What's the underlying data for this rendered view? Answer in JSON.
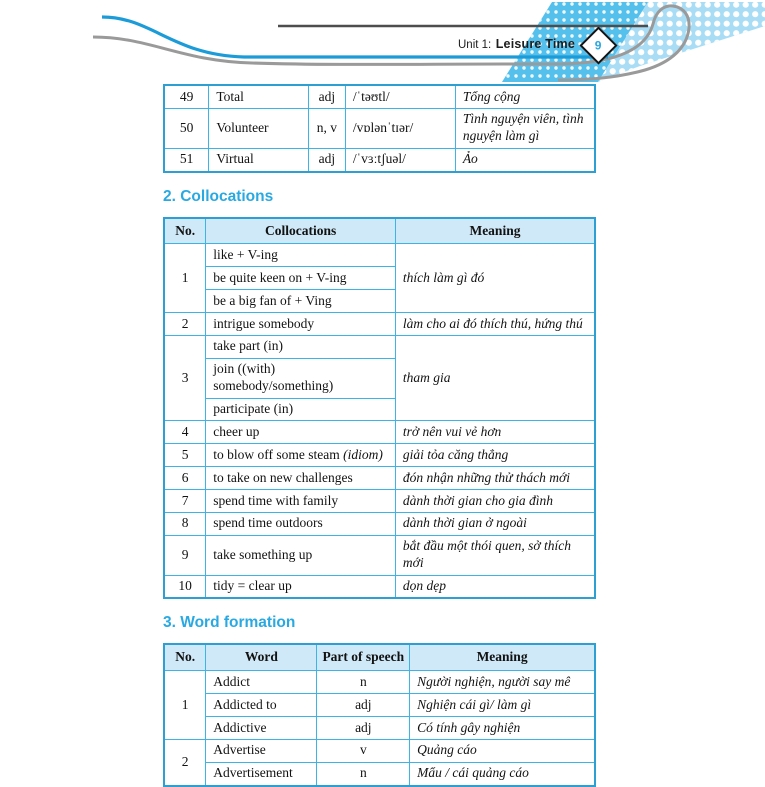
{
  "page_header": {
    "unit_label": "Unit 1:",
    "unit_title": "Leisure Time",
    "page_number": "9"
  },
  "colors": {
    "accent": "#29a9e1",
    "table_border": "#3eb3e6",
    "table_outer_border": "#2d9fd3",
    "table_header_bg": "#cfe9f8",
    "halftone_blue_dark": "#55c0ec",
    "halftone_blue_light": "#a8ddf5",
    "wave_gray": "#9a9a9a",
    "wave_blue": "#1b9cd9"
  },
  "vocab_table": {
    "rows": [
      {
        "no": "49",
        "word": "Total",
        "pos": "adj",
        "pron": "/ˈtəʊtl/",
        "meaning": "Tổng cộng"
      },
      {
        "no": "50",
        "word": "Volunteer",
        "pos": "n, v",
        "pron": "/vɒlənˈtɪər/",
        "meaning": "Tình nguyện viên, tình nguyện làm gì"
      },
      {
        "no": "51",
        "word": "Virtual",
        "pos": "adj",
        "pron": "/ˈvɜːtʃuəl/",
        "meaning": "Ảo"
      }
    ]
  },
  "collocations": {
    "heading": "2. Collocations",
    "columns": [
      "No.",
      "Collocations",
      "Meaning"
    ],
    "groups": [
      {
        "no": "1",
        "items": [
          {
            "t": "like + V-ing"
          },
          {
            "t": "be quite keen on + V-ing"
          },
          {
            "t": "be a big fan of + Ving"
          }
        ],
        "meaning": "thích làm gì đó"
      },
      {
        "no": "2",
        "items": [
          {
            "t": "intrigue somebody"
          }
        ],
        "meaning": "làm cho ai đó thích thú, hứng thú"
      },
      {
        "no": "3",
        "items": [
          {
            "t": "take part (in)"
          },
          {
            "t": "join ((with) somebody/something)"
          },
          {
            "t": "participate (in)"
          }
        ],
        "meaning": "tham gia"
      },
      {
        "no": "4",
        "items": [
          {
            "t": "cheer up"
          }
        ],
        "meaning": "trở nên vui vẻ hơn"
      },
      {
        "no": "5",
        "items": [
          {
            "t": "to blow off some steam",
            "note": "(idiom)"
          }
        ],
        "meaning": "giải tỏa căng thẳng"
      },
      {
        "no": "6",
        "items": [
          {
            "t": "to take on new challenges"
          }
        ],
        "meaning": "đón nhận những thử thách mới"
      },
      {
        "no": "7",
        "items": [
          {
            "t": "spend time with family"
          }
        ],
        "meaning": "dành thời gian cho gia đình"
      },
      {
        "no": "8",
        "items": [
          {
            "t": "spend time outdoors"
          }
        ],
        "meaning": "dành thời gian ở ngoài"
      },
      {
        "no": "9",
        "items": [
          {
            "t": "take something up"
          }
        ],
        "meaning": "bắt đầu một thói quen, sở thích mới"
      },
      {
        "no": "10",
        "items": [
          {
            "t": "tidy = clear up"
          }
        ],
        "meaning": "dọn dẹp"
      }
    ]
  },
  "word_formation": {
    "heading": "3. Word formation",
    "columns": [
      "No.",
      "Word",
      "Part of speech",
      "Meaning"
    ],
    "groups": [
      {
        "no": "1",
        "items": [
          {
            "word": "Addict",
            "pos": "n",
            "meaning": "Người nghiện, người say mê"
          },
          {
            "word": "Addicted to",
            "pos": "adj",
            "meaning": "Nghiện cái gì/ làm gì"
          },
          {
            "word": "Addictive",
            "pos": "adj",
            "meaning": "Có tính gây nghiện"
          }
        ]
      },
      {
        "no": "2",
        "items": [
          {
            "word": "Advertise",
            "pos": "v",
            "meaning": "Quảng cáo"
          },
          {
            "word": "Advertisement",
            "pos": "n",
            "meaning": "Mẩu / cái quảng cáo"
          }
        ]
      }
    ]
  }
}
